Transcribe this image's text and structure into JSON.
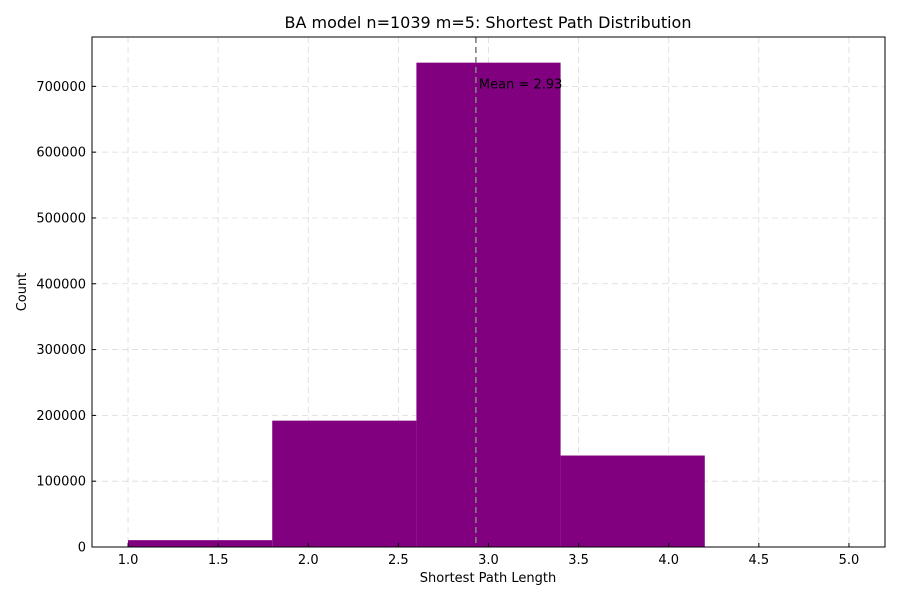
{
  "chart_data": {
    "type": "bar",
    "title": "BA model n=1039 m=5: Shortest Path Distribution",
    "xlabel": "Shortest Path Length",
    "ylabel": "Count",
    "xlim": [
      0.8,
      5.2
    ],
    "ylim": [
      0,
      775000
    ],
    "xticks": [
      1.0,
      1.5,
      2.0,
      2.5,
      3.0,
      3.5,
      4.0,
      4.5,
      5.0
    ],
    "xtick_labels": [
      "1.0",
      "1.5",
      "2.0",
      "2.5",
      "3.0",
      "3.5",
      "4.0",
      "4.5",
      "5.0"
    ],
    "yticks": [
      0,
      100000,
      200000,
      300000,
      400000,
      500000,
      600000,
      700000
    ],
    "ytick_labels": [
      "0",
      "100000",
      "200000",
      "300000",
      "400000",
      "500000",
      "600000",
      "700000"
    ],
    "bins": [
      {
        "x0": 1.0,
        "x1": 1.8,
        "count": 10400
      },
      {
        "x0": 1.8,
        "x1": 2.6,
        "count": 192000
      },
      {
        "x0": 2.6,
        "x1": 3.4,
        "count": 736000
      },
      {
        "x0": 3.4,
        "x1": 4.2,
        "count": 139000
      },
      {
        "x0": 4.2,
        "x1": 5.0,
        "count": 0
      }
    ],
    "bar_color": "#800080",
    "mean": 2.93,
    "mean_label": "Mean = 2.93",
    "mean_line_color": "#808080",
    "grid": true,
    "grid_style": "dashed"
  }
}
